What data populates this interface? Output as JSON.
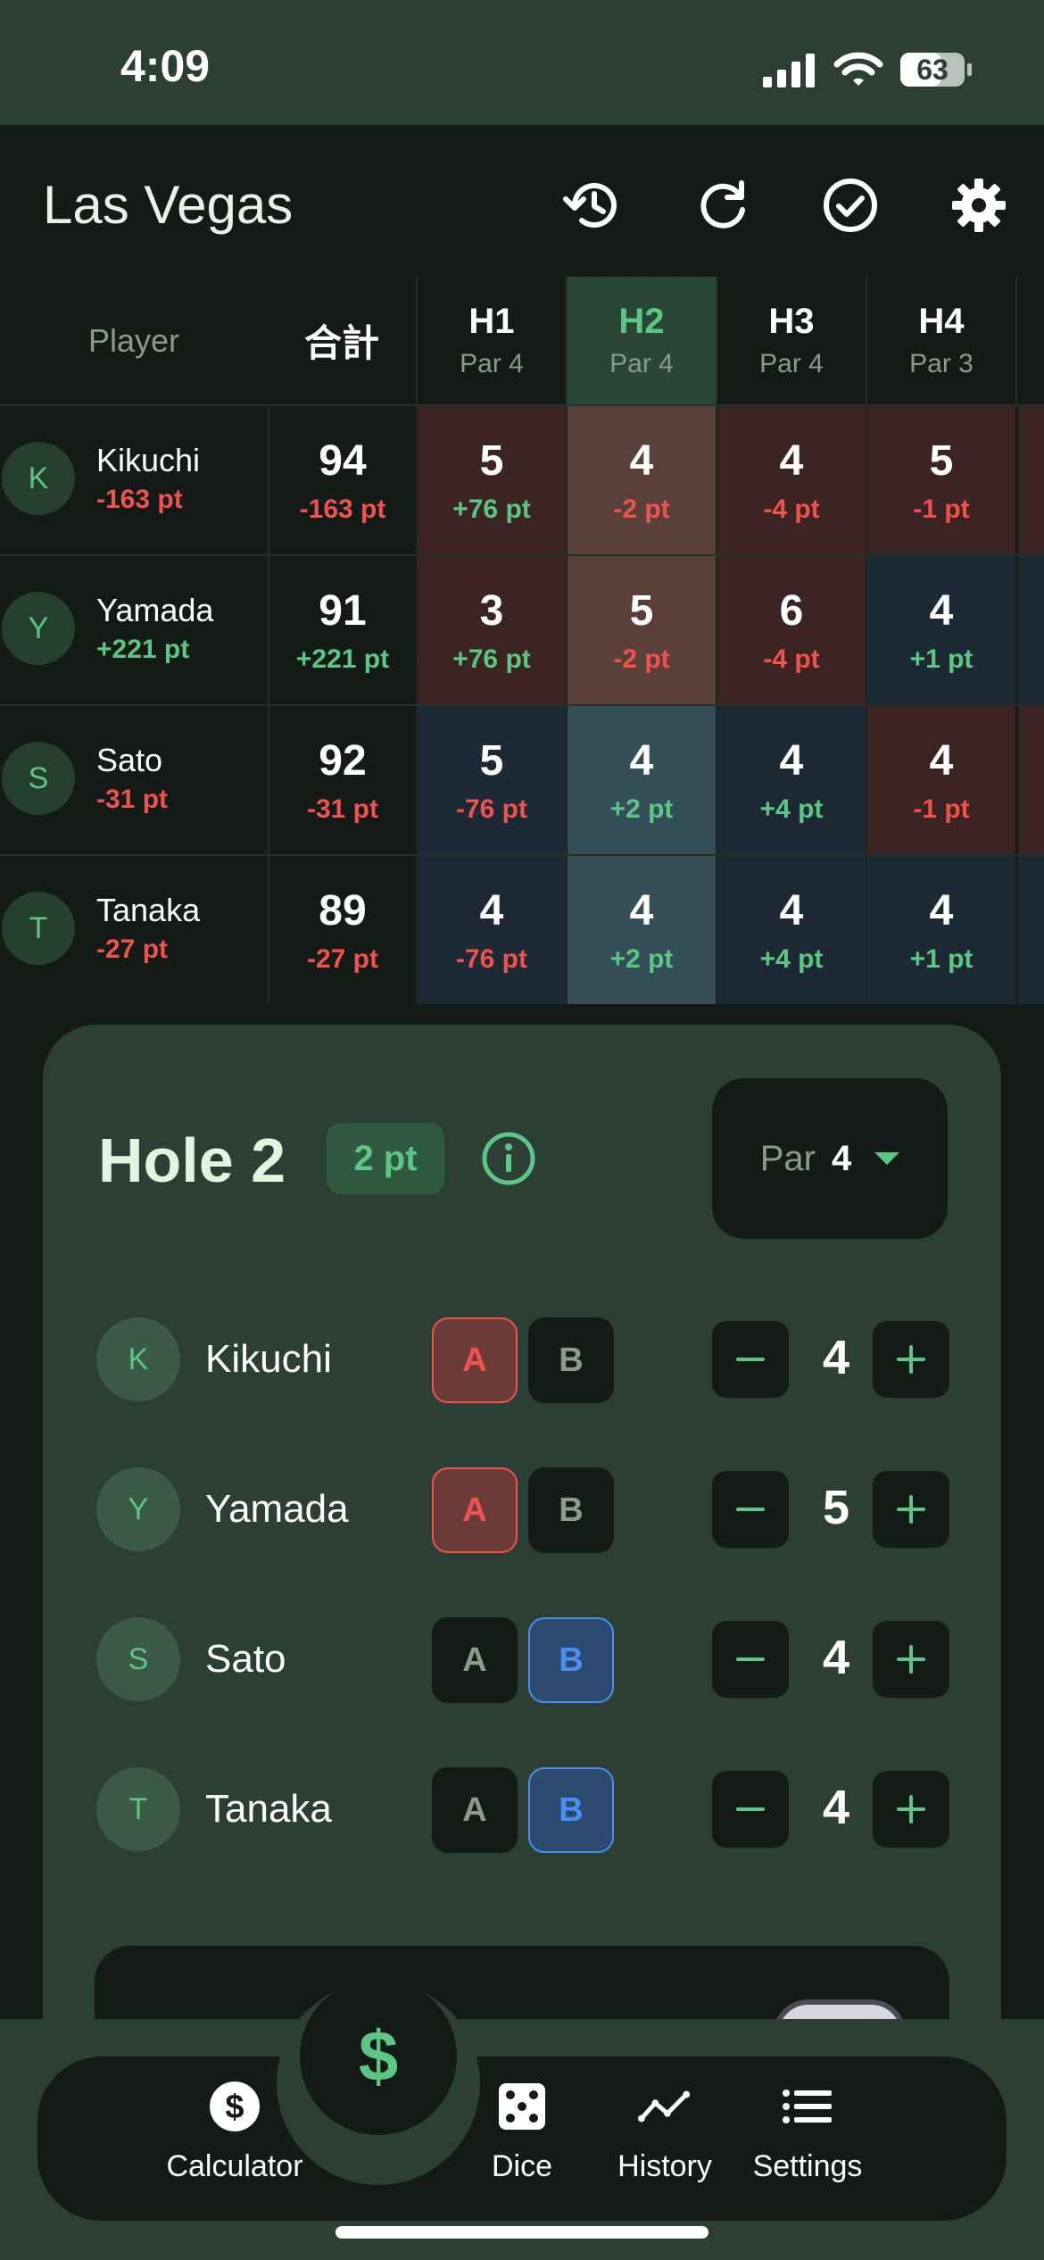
{
  "status_bar": {
    "time": "4:09",
    "battery": "63"
  },
  "header": {
    "title": "Las Vegas",
    "icons": [
      "history-icon",
      "refresh-icon",
      "check-circle-icon",
      "settings-gear-icon"
    ]
  },
  "table": {
    "player_header": "Player",
    "total_header": "合計",
    "holes": [
      {
        "label": "H1",
        "par": "Par 4"
      },
      {
        "label": "H2",
        "par": "Par 4"
      },
      {
        "label": "H3",
        "par": "Par 4"
      },
      {
        "label": "H4",
        "par": "Par 3"
      }
    ],
    "rows": [
      {
        "initial": "K",
        "name": "Kikuchi",
        "pt": "-163 pt",
        "total": "94",
        "total_pt": "-163 pt",
        "holes": [
          {
            "score": "5",
            "pt": "+76 pt"
          },
          {
            "score": "4",
            "pt": "-2 pt"
          },
          {
            "score": "4",
            "pt": "-4 pt"
          },
          {
            "score": "5",
            "pt": "-1 pt"
          }
        ]
      },
      {
        "initial": "Y",
        "name": "Yamada",
        "pt": "+221 pt",
        "total": "91",
        "total_pt": "+221 pt",
        "holes": [
          {
            "score": "3",
            "pt": "+76 pt"
          },
          {
            "score": "5",
            "pt": "-2 pt"
          },
          {
            "score": "6",
            "pt": "-4 pt"
          },
          {
            "score": "4",
            "pt": "+1 pt"
          }
        ]
      },
      {
        "initial": "S",
        "name": "Sato",
        "pt": "-31 pt",
        "total": "92",
        "total_pt": "-31 pt",
        "holes": [
          {
            "score": "5",
            "pt": "-76 pt"
          },
          {
            "score": "4",
            "pt": "+2 pt"
          },
          {
            "score": "4",
            "pt": "+4 pt"
          },
          {
            "score": "4",
            "pt": "-1 pt"
          }
        ]
      },
      {
        "initial": "T",
        "name": "Tanaka",
        "pt": "-27 pt",
        "total": "89",
        "total_pt": "-27 pt",
        "holes": [
          {
            "score": "4",
            "pt": "-76 pt"
          },
          {
            "score": "4",
            "pt": "+2 pt"
          },
          {
            "score": "4",
            "pt": "+4 pt"
          },
          {
            "score": "4",
            "pt": "+1 pt"
          }
        ]
      }
    ]
  },
  "hole_card": {
    "title": "Hole 2",
    "points_badge": "2 pt",
    "par_label": "Par",
    "par_value": "4",
    "team_a_label": "A",
    "team_b_label": "B",
    "minus_symbol": "−",
    "plus_symbol": "+",
    "players": [
      {
        "initial": "K",
        "name": "Kikuchi",
        "team": "A",
        "score": "4"
      },
      {
        "initial": "Y",
        "name": "Yamada",
        "team": "A",
        "score": "5"
      },
      {
        "initial": "S",
        "name": "Sato",
        "team": "B",
        "score": "4"
      },
      {
        "initial": "T",
        "name": "Tanaka",
        "team": "B",
        "score": "4"
      }
    ]
  },
  "nav": {
    "fab_symbol": "$",
    "items": [
      {
        "label": "Calculator",
        "icon": "dollar-coin-icon"
      },
      {
        "label": "Dice",
        "icon": "dice-icon"
      },
      {
        "label": "History",
        "icon": "trend-line-icon"
      },
      {
        "label": "Settings",
        "icon": "list-icon"
      }
    ]
  },
  "colors": {
    "accent_green": "#5cc784",
    "negative_red": "#ef5350",
    "team_b_blue": "#4a8ef0",
    "surface": "#2c3f34",
    "background": "#141a16"
  }
}
